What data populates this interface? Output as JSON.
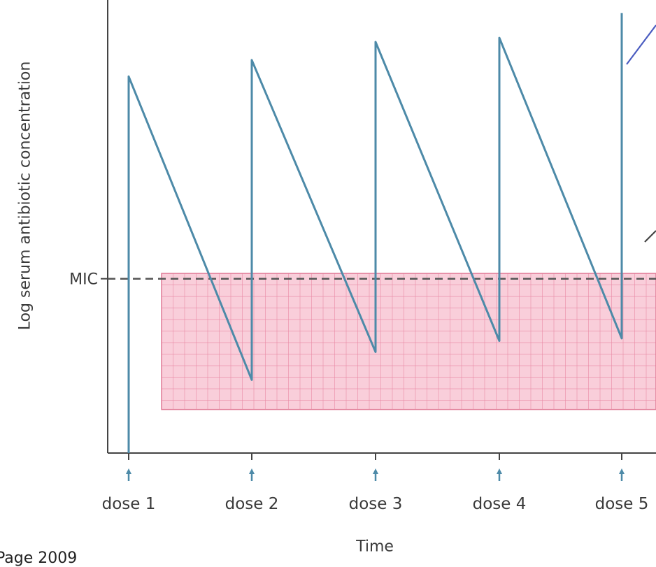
{
  "chart_data": {
    "type": "line",
    "title": "",
    "xlabel": "Time",
    "ylabel": "Log serum antibiotic concentration",
    "x_ticks": [
      "dose 1",
      "dose 2",
      "dose 3",
      "dose 4",
      "dose 5"
    ],
    "reference_line": {
      "label": "MIC",
      "value": 0.424,
      "style": "dashed"
    },
    "shaded_region": {
      "y_range": [
        0.106,
        0.437
      ],
      "color": "#f4a6bb",
      "grid": true
    },
    "ylim": [
      0,
      1
    ],
    "series": [
      {
        "color": "#4d8aa8",
        "points": [
          [
            1,
            0
          ],
          [
            1,
            0.916
          ],
          [
            2,
            0.178
          ],
          [
            2,
            0.956
          ],
          [
            3,
            0.246
          ],
          [
            3,
            1.0
          ],
          [
            4,
            0.273
          ],
          [
            4,
            1.01
          ],
          [
            5,
            0.279
          ],
          [
            5,
            1.07
          ]
        ]
      }
    ],
    "annotation_lines": [
      {
        "color": "#4a5cc0"
      },
      {
        "color": "#444444"
      }
    ]
  },
  "footer_text": "Page 2009",
  "colors": {
    "series": "#4d8aa8",
    "shade": "#f4a6bb",
    "grid": "#e88aa4",
    "axis": "#444444"
  }
}
